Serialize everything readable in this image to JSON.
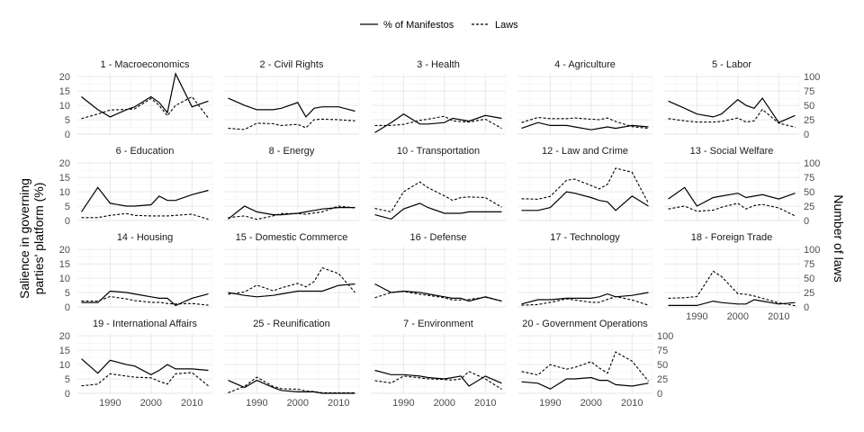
{
  "chart_data": {
    "type": "line",
    "layout": "facet-grid",
    "legend_position": "top",
    "legend": [
      {
        "name": "% of Manifestos",
        "linetype": "solid"
      },
      {
        "name": "Laws",
        "linetype": "dashed"
      }
    ],
    "ylabel_left": [
      "Salience in governing",
      "parties' platform (%)"
    ],
    "ylabel_right": "Number of laws",
    "x_ticks": [
      1990,
      2000,
      2010
    ],
    "xlim": [
      1982,
      2015
    ],
    "y_left_ticks": [
      0,
      5,
      10,
      15,
      20
    ],
    "y_left_lim": [
      0,
      21
    ],
    "y_right_ticks": [
      0,
      25,
      50,
      75,
      100
    ],
    "y_right_lim": [
      0,
      105
    ],
    "x": [
      1983,
      1987,
      1990,
      1994,
      1996,
      2000,
      2002,
      2004,
      2006,
      2010,
      2014
    ],
    "panels": [
      {
        "title": "1 - Macroeconomics",
        "manifestos": [
          13,
          8.5,
          6,
          8.5,
          9.5,
          13,
          11,
          7.5,
          21,
          9.5,
          11.5
        ],
        "laws": [
          27,
          35,
          42,
          43,
          44,
          62,
          50,
          32,
          50,
          65,
          28
        ]
      },
      {
        "title": "2 - Civil Rights",
        "manifestos": [
          12.5,
          10,
          8.5,
          8.5,
          9,
          11,
          6,
          9,
          9.5,
          9.5,
          8
        ],
        "laws": [
          10,
          8,
          19,
          18,
          15,
          17,
          11,
          25,
          26,
          25,
          23
        ]
      },
      {
        "title": "3 - Health",
        "manifestos": [
          0.5,
          4,
          7,
          3.5,
          3.5,
          4,
          5.5,
          5,
          4.5,
          6.5,
          5.5
        ],
        "laws": [
          15,
          15,
          17,
          24,
          26,
          31,
          23,
          22,
          21,
          26,
          10
        ]
      },
      {
        "title": "4 - Agriculture",
        "manifestos": [
          2,
          4,
          3,
          3,
          2.5,
          1.5,
          2,
          2.5,
          2,
          3,
          2.5
        ],
        "laws": [
          20,
          29,
          27,
          27,
          28,
          26,
          25,
          28,
          22,
          13,
          10
        ]
      },
      {
        "title": "5 - Labor",
        "manifestos": [
          11.5,
          9,
          7,
          6,
          7,
          12,
          10,
          9,
          12.5,
          4,
          6.5
        ],
        "laws": [
          27,
          23,
          21,
          21,
          22,
          28,
          21,
          23,
          43,
          19,
          12
        ]
      },
      {
        "title": "6 - Education",
        "manifestos": [
          3,
          11.5,
          6,
          5,
          5,
          5.5,
          8.5,
          7,
          7,
          9,
          10.5
        ],
        "laws": [
          5,
          5,
          9,
          12,
          9,
          8,
          8,
          8,
          9,
          11,
          2
        ]
      },
      {
        "title": "8 - Energy",
        "manifestos": [
          0.5,
          5,
          3,
          2,
          2,
          2.5,
          3,
          3.5,
          4,
          4.5,
          4.5
        ],
        "laws": [
          5,
          8,
          2,
          8,
          12,
          12,
          11,
          13,
          15,
          25,
          22
        ]
      },
      {
        "title": "10 - Transportation",
        "manifestos": [
          2,
          0.5,
          4,
          6,
          4.5,
          2.5,
          2.5,
          2.5,
          3,
          3,
          3
        ],
        "laws": [
          21,
          15,
          50,
          67,
          57,
          43,
          35,
          40,
          41,
          40,
          23
        ]
      },
      {
        "title": "12 - Law and Crime",
        "manifestos": [
          3.5,
          3.5,
          4.5,
          10,
          9.5,
          8,
          7,
          6.5,
          3.5,
          8.5,
          5
        ],
        "laws": [
          38,
          37,
          42,
          70,
          72,
          61,
          55,
          63,
          91,
          84,
          30
        ]
      },
      {
        "title": "13 - Social Welfare",
        "manifestos": [
          7.5,
          11.5,
          5,
          8,
          8.5,
          9.5,
          8,
          8.5,
          9,
          7.5,
          9.5
        ],
        "laws": [
          20,
          25,
          16,
          18,
          23,
          30,
          20,
          26,
          28,
          22,
          8
        ]
      },
      {
        "title": "14 - Housing",
        "manifestos": [
          1.5,
          1.5,
          5.5,
          5,
          4.5,
          3.5,
          3,
          3,
          0.5,
          3,
          4.5
        ],
        "laws": [
          10,
          10,
          18,
          14,
          11,
          8,
          8,
          6,
          5,
          6,
          3
        ]
      },
      {
        "title": "15 - Domestic Commerce",
        "manifestos": [
          5,
          4,
          3.5,
          4,
          4.5,
          5.5,
          5.5,
          5.5,
          5.5,
          7.5,
          8
        ],
        "laws": [
          22,
          26,
          38,
          28,
          33,
          41,
          35,
          44,
          68,
          58,
          25
        ]
      },
      {
        "title": "16 - Defense",
        "manifestos": [
          8,
          5,
          5.5,
          5,
          4.5,
          3.5,
          3,
          3,
          2,
          3.5,
          2
        ],
        "laws": [
          16,
          25,
          27,
          22,
          20,
          16,
          12,
          12,
          13,
          17,
          10
        ]
      },
      {
        "title": "17 - Technology",
        "manifestos": [
          1,
          2.5,
          2.5,
          3,
          3,
          3,
          3.5,
          4.5,
          3.5,
          4,
          5
        ],
        "laws": [
          3,
          4,
          8,
          14,
          12,
          8,
          8,
          13,
          18,
          12,
          3
        ]
      },
      {
        "title": "18 - Foreign Trade",
        "manifestos": [
          0.5,
          0.5,
          0.5,
          2,
          1.5,
          1,
          1,
          2.5,
          2,
          1,
          1.5
        ],
        "laws": [
          15,
          16,
          18,
          62,
          53,
          23,
          22,
          19,
          15,
          7,
          2
        ]
      },
      {
        "title": "19 - International Affairs",
        "manifestos": [
          12,
          7,
          11.5,
          10,
          9.5,
          6.5,
          8,
          10,
          8.5,
          8.5,
          8
        ],
        "laws": [
          13,
          16,
          34,
          30,
          28,
          27,
          21,
          16,
          34,
          36,
          13
        ]
      },
      {
        "title": "25 - Reunification",
        "manifestos": [
          4.5,
          2,
          4.5,
          2,
          1,
          0.5,
          0.5,
          0.5,
          0,
          0,
          0
        ],
        "laws": [
          1,
          12,
          28,
          12,
          8,
          7,
          4,
          3,
          1,
          1,
          1
        ]
      },
      {
        "title": "7 - Environment",
        "manifestos": [
          8,
          6.5,
          6.5,
          6,
          5.5,
          5,
          5.5,
          6,
          2.5,
          6,
          3.5
        ],
        "laws": [
          22,
          18,
          30,
          27,
          25,
          24,
          23,
          25,
          38,
          25,
          7
        ]
      },
      {
        "title": "20 - Government Operations",
        "manifestos": [
          4,
          3.5,
          1.5,
          5,
          5,
          5.5,
          4.5,
          4.5,
          3,
          2.5,
          3.5
        ],
        "laws": [
          38,
          32,
          50,
          42,
          45,
          55,
          44,
          35,
          72,
          56,
          21
        ]
      }
    ]
  }
}
